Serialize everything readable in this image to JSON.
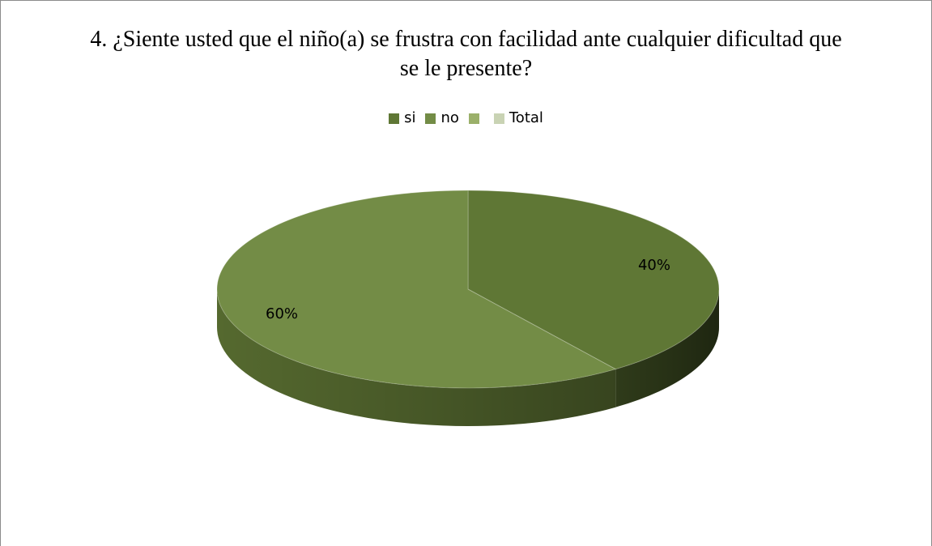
{
  "chart_data": {
    "type": "pie",
    "title": "4. ¿Siente usted que el niño(a) se frustra con facilidad ante cualquier dificultad que se le presente?",
    "legend_position": "top",
    "legend": [
      {
        "label": "si",
        "color": "#5f7735"
      },
      {
        "label": "no",
        "color": "#738c46"
      },
      {
        "label": "",
        "color": "#9bb06a"
      },
      {
        "label": "Total",
        "color": "#c9d3b4"
      }
    ],
    "slices": [
      {
        "label": "si",
        "value": 40,
        "data_label": "40%",
        "color": "#5f7735",
        "side_color": "#2f3b1a"
      },
      {
        "label": "no",
        "value": 60,
        "data_label": "60%",
        "color": "#738c46",
        "side_color": "#55692f"
      }
    ]
  }
}
